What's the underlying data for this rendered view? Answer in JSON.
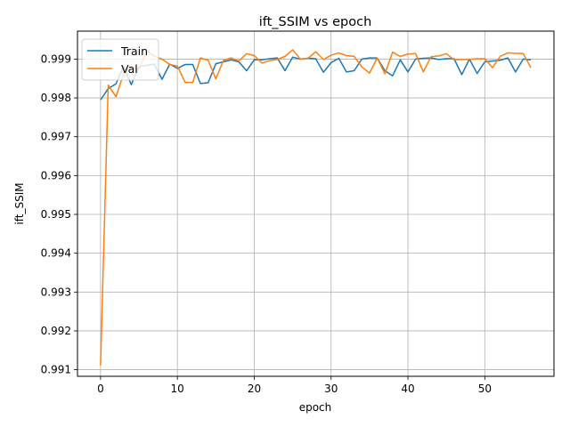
{
  "chart_data": {
    "type": "line",
    "title": "ift_SSIM vs epoch",
    "xlabel": "epoch",
    "ylabel": "ift_SSIM",
    "xlim": [
      -3,
      59
    ],
    "ylim": [
      0.99083,
      0.99972
    ],
    "xticks": [
      0,
      10,
      20,
      30,
      40,
      50
    ],
    "yticks": [
      0.991,
      0.992,
      0.993,
      0.994,
      0.995,
      0.996,
      0.997,
      0.998,
      0.999
    ],
    "ytick_labels": [
      "0.991",
      "0.992",
      "0.993",
      "0.994",
      "0.995",
      "0.996",
      "0.997",
      "0.998",
      "0.999"
    ],
    "grid": true,
    "legend": "upper-left",
    "colors": {
      "Train": "#1f77b4",
      "Val": "#ff7f0e"
    },
    "x": [
      0,
      1,
      2,
      3,
      4,
      5,
      6,
      7,
      8,
      9,
      10,
      11,
      12,
      13,
      14,
      15,
      16,
      17,
      18,
      19,
      20,
      21,
      22,
      23,
      24,
      25,
      26,
      27,
      28,
      29,
      30,
      31,
      32,
      33,
      34,
      35,
      36,
      37,
      38,
      39,
      40,
      41,
      42,
      43,
      44,
      45,
      46,
      47,
      48,
      49,
      50,
      51,
      52,
      53,
      54,
      55,
      56
    ],
    "series": [
      {
        "name": "Train",
        "values": [
          0.99795,
          0.99824,
          0.99836,
          0.99882,
          0.99834,
          0.9988,
          0.99884,
          0.99887,
          0.99848,
          0.99887,
          0.99876,
          0.99886,
          0.99886,
          0.99837,
          0.99839,
          0.99888,
          0.99893,
          0.99898,
          0.99893,
          0.9987,
          0.99898,
          0.99898,
          0.99901,
          0.99903,
          0.9987,
          0.99905,
          0.999,
          0.99902,
          0.99901,
          0.99866,
          0.99891,
          0.99902,
          0.99867,
          0.9987,
          0.999,
          0.99903,
          0.99903,
          0.9987,
          0.99857,
          0.99898,
          0.99867,
          0.999,
          0.99902,
          0.99903,
          0.99899,
          0.99901,
          0.99901,
          0.9986,
          0.999,
          0.99863,
          0.99893,
          0.99895,
          0.99897,
          0.99903,
          0.99867,
          0.999,
          0.99898
        ]
      },
      {
        "name": "Val",
        "values": [
          0.99111,
          0.99833,
          0.99803,
          0.99862,
          0.99881,
          0.99874,
          0.9992,
          0.99908,
          0.999,
          0.99886,
          0.99882,
          0.9984,
          0.9984,
          0.99903,
          0.99897,
          0.99849,
          0.99897,
          0.99903,
          0.99895,
          0.99914,
          0.99909,
          0.9989,
          0.99896,
          0.99899,
          0.99907,
          0.99924,
          0.999,
          0.99902,
          0.99919,
          0.99899,
          0.9991,
          0.99916,
          0.99909,
          0.99907,
          0.9988,
          0.99864,
          0.99903,
          0.99862,
          0.99918,
          0.99907,
          0.99913,
          0.99914,
          0.99867,
          0.99906,
          0.99908,
          0.99914,
          0.99898,
          0.99899,
          0.99899,
          0.99901,
          0.99901,
          0.99878,
          0.99907,
          0.99916,
          0.99915,
          0.99914,
          0.99878
        ]
      }
    ]
  }
}
